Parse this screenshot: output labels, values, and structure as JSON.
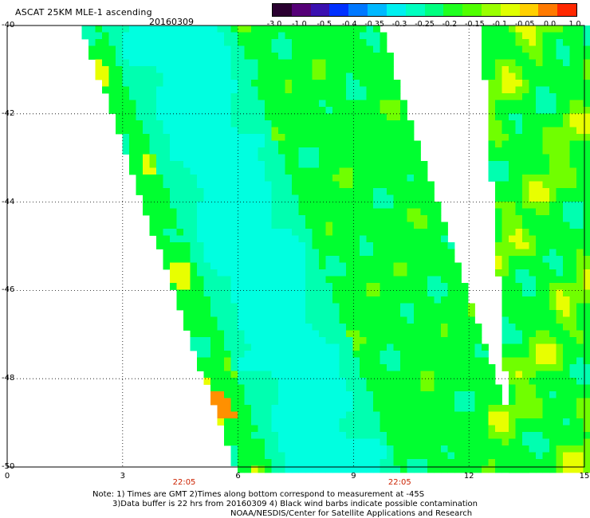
{
  "header": {
    "title": "ASCAT 25KM MLE-1 ascending",
    "date": "20160309"
  },
  "colorbar": {
    "colors": [
      "#2a0030",
      "#550077",
      "#3a10b0",
      "#0030ff",
      "#0078ff",
      "#00b8ff",
      "#00f0f0",
      "#00ffc0",
      "#00ff80",
      "#20ff20",
      "#50ff00",
      "#9aff00",
      "#e0ff00",
      "#ffd000",
      "#ff7a00",
      "#ff2800"
    ],
    "labels": [
      "-3.0",
      "-1.0",
      "-0.5",
      "-0.4",
      "-0.35",
      "-0.3",
      "-0.25",
      "-0.2",
      "-0.15",
      "-0.1",
      "-0.05",
      "0.0",
      "1.0"
    ]
  },
  "axes": {
    "x_ticks": [
      "0",
      "3",
      "6",
      "9",
      "12",
      "15"
    ],
    "y_ticks": [
      "-40",
      "-42",
      "-44",
      "-46",
      "-48",
      "-50"
    ],
    "time_labels": [
      "22:05",
      "22:05"
    ]
  },
  "map": {
    "x_range": [
      0,
      15
    ],
    "y_range": [
      -50,
      -40
    ],
    "swaths": [
      {
        "name": "swath-1",
        "top_lon": [
          2.0,
          9.6
        ],
        "bottom_lon": [
          6.0,
          13.4
        ]
      },
      {
        "name": "swath-2",
        "top_lon": [
          12.4,
          15.0
        ],
        "bottom_lon": [
          13.2,
          15.0
        ]
      }
    ],
    "colors": {
      "cyan": "#00ffe0",
      "teal": "#00ffb0",
      "green": "#00ff30",
      "lime": "#70ff00",
      "yellow": "#e8ff00",
      "orange": "#ff9000"
    }
  },
  "notes": {
    "line1": "Note: 1) Times are GMT 2)Times along bottom correspond to measurement at -45S",
    "line2": "3)Data buffer is 22 hrs from 20160309 4) Black wind barbs indicate possible contamination",
    "line3": "NOAA/NESDIS/Center for Satellite Applications and Research"
  }
}
